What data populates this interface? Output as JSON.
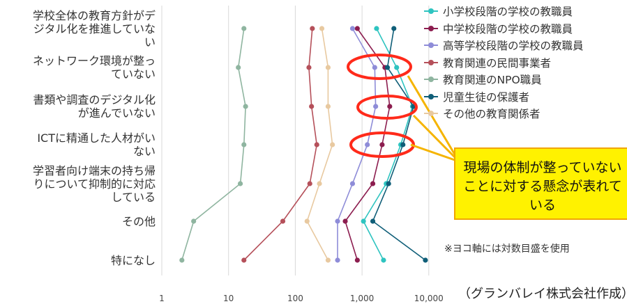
{
  "chart_data": {
    "type": "line",
    "x_scale": "log",
    "xlim": [
      1,
      10000
    ],
    "x_ticks": [
      "1",
      "10",
      "100",
      "1,000",
      "10,000"
    ],
    "x_tick_values": [
      1,
      10,
      100,
      1000,
      10000
    ],
    "grid": "vertical",
    "legend_position": "top-right",
    "categories": [
      "学校全体の教育方針がデ\nジタル化を推進していな\nい",
      "ネットワーク環境が整っ\nていない",
      "書類や調査のデジタル化\nが進んでいない",
      "ICTに精通した人材がい\nない",
      "学習者向け端末の持ち帰\nりについて抑制的に対応\nしている",
      "その他",
      "特になし"
    ],
    "series": [
      {
        "name": "小学校段階の学校の教職員",
        "color": "#2ec4c0",
        "values": [
          1650,
          3300,
          5700,
          3800,
          2300,
          1050,
          2100
        ]
      },
      {
        "name": "中学校段階の学校の教職員",
        "color": "#8c1d4f",
        "values": [
          850,
          2200,
          2600,
          2000,
          1450,
          560,
          850
        ]
      },
      {
        "name": "高等学校段階の学校の教職員",
        "color": "#8e8cd8",
        "values": [
          720,
          1550,
          1600,
          1200,
          720,
          430,
          430
        ]
      },
      {
        "name": "教育関連の民間事業者",
        "color": "#b5505a",
        "values": [
          180,
          160,
          175,
          210,
          165,
          65,
          17
        ]
      },
      {
        "name": "教育関連のNPO職員",
        "color": "#8fb5a0",
        "values": [
          17,
          14,
          18,
          17,
          15,
          3,
          2
        ]
      },
      {
        "name": "児童生徒の保護者",
        "color": "#0f5e78",
        "values": [
          3000,
          2400,
          5900,
          4100,
          2500,
          1450,
          8900
        ]
      },
      {
        "name": "その他の教育関係者",
        "color": "#e8c9a0",
        "values": [
          250,
          310,
          310,
          360,
          230,
          150,
          310
        ]
      }
    ],
    "annotations": [
      "現場の体制が整っていないことに対する懸念が表れている",
      "※ヨコ軸には対数目盛を使用",
      "（グランバレイ株式会社作成）"
    ]
  },
  "highlight_rows": [
    1,
    2,
    3
  ],
  "highlight_color": "#ff2a1a",
  "callout_color": "#fff200",
  "arrow_color": "#f5b400"
}
